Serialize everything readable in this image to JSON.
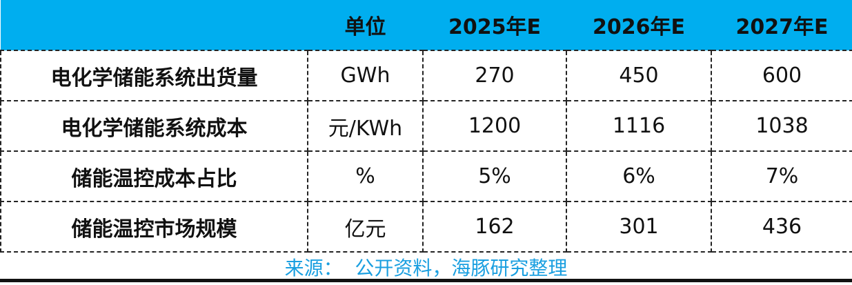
{
  "table": {
    "header": [
      "",
      "单位",
      "2025年E",
      "2026年E",
      "2027年E"
    ],
    "rows": [
      [
        "电化学储能系统出货量",
        "GWh",
        "270",
        "450",
        "600"
      ],
      [
        "电化学储能系统成本",
        "元/KWh",
        "1200",
        "1116",
        "1038"
      ],
      [
        "储能温控成本占比",
        "%",
        "5%",
        "6%",
        "7%"
      ],
      [
        "储能温控市场规模",
        "亿元",
        "162",
        "301",
        "436"
      ]
    ]
  },
  "source": "来源：  公开资料，海豚研究整理"
}
